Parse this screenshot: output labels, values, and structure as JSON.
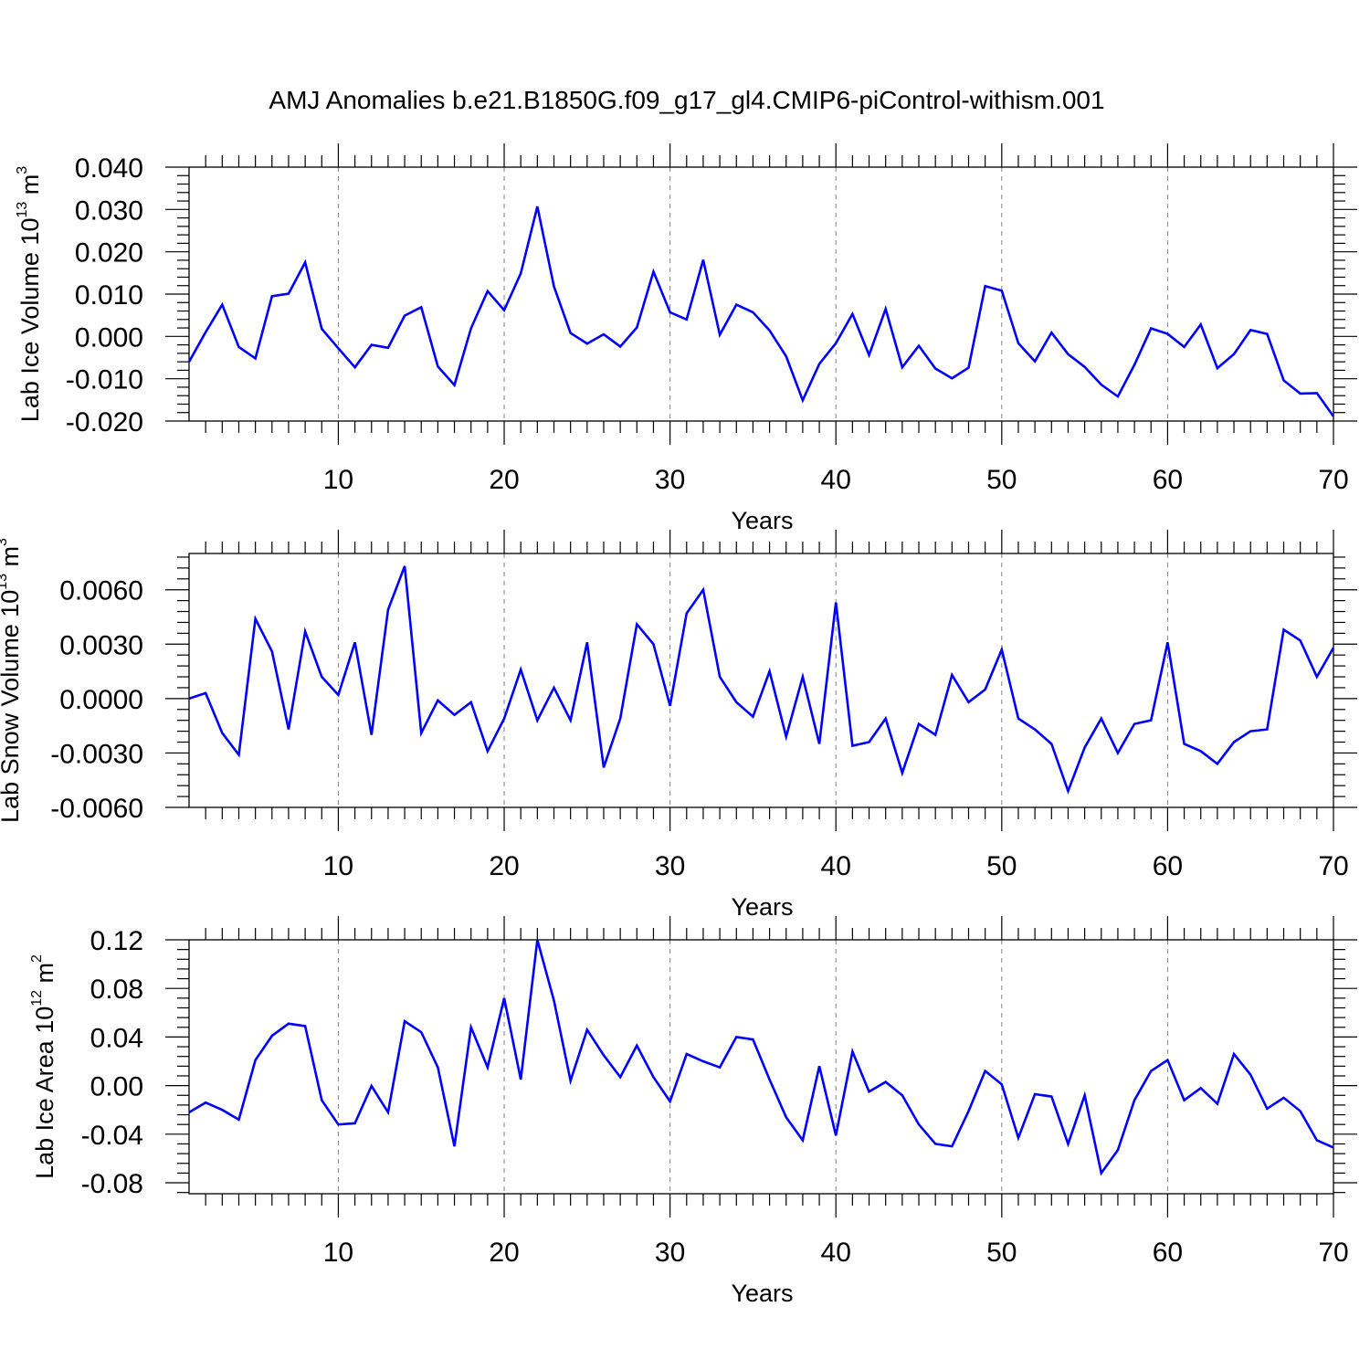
{
  "title": "AMJ Anomalies b.e21.B1850G.f09_g17_gl4.CMIP6-piControl-withism.001",
  "colors": {
    "series": "#0000ff",
    "axis": "#000000",
    "grid": "#808080"
  },
  "chart_data": [
    {
      "type": "line",
      "ylabel": "Lab Ice Volume 10",
      "ylabel_exp": "13",
      "ylabel_unit": " m",
      "ylabel_unit_exp": "3",
      "xlabel": "Years",
      "xlim": [
        1,
        70
      ],
      "ylim": [
        -0.02,
        0.04
      ],
      "yticks": [
        -0.02,
        -0.01,
        0.0,
        0.01,
        0.02,
        0.03,
        0.04
      ],
      "ytick_labels": [
        "-0.020",
        "-0.010",
        "0.000",
        "0.010",
        "0.020",
        "0.030",
        "0.040"
      ],
      "yminor_step": 0.002,
      "xticks": [
        10,
        20,
        30,
        40,
        50,
        60,
        70
      ],
      "xtick_labels": [
        "10",
        "20",
        "30",
        "40",
        "50",
        "60",
        "70"
      ],
      "grid_x": [
        10,
        20,
        30,
        40,
        50,
        60
      ],
      "values": [
        -0.006,
        0.001,
        0.0075,
        -0.0025,
        -0.0052,
        0.0095,
        0.0101,
        0.0175,
        0.0018,
        -0.0028,
        -0.0073,
        -0.002,
        -0.0027,
        0.0049,
        0.0069,
        -0.0071,
        -0.0115,
        0.0019,
        0.0107,
        0.0062,
        0.0149,
        0.0307,
        0.0118,
        0.0008,
        -0.0017,
        0.0005,
        -0.0024,
        0.0021,
        0.0153,
        0.0057,
        0.004,
        0.0181,
        0.0004,
        0.0075,
        0.0057,
        0.0014,
        -0.0047,
        -0.0151,
        -0.0065,
        -0.0016,
        0.0053,
        -0.0044,
        0.0065,
        -0.0073,
        -0.0022,
        -0.0076,
        -0.0099,
        -0.0074,
        0.0119,
        0.0108,
        -0.0016,
        -0.0059,
        0.0009,
        -0.0042,
        -0.0072,
        -0.0114,
        -0.0142,
        -0.0067,
        0.0019,
        0.0006,
        -0.0025,
        0.0028,
        -0.0075,
        -0.0042,
        0.0015,
        0.0006,
        -0.0104,
        -0.0135,
        -0.0134,
        -0.0189
      ]
    },
    {
      "type": "line",
      "ylabel": "Lab Snow Volume 10",
      "ylabel_exp": "13",
      "ylabel_unit": " m",
      "ylabel_unit_exp": "3",
      "xlabel": "Years",
      "xlim": [
        1,
        70
      ],
      "ylim": [
        -0.006,
        0.008
      ],
      "yticks": [
        -0.006,
        -0.003,
        0.0,
        0.003,
        0.006
      ],
      "ytick_labels": [
        "-0.0060",
        "-0.0030",
        "0.0000",
        "0.0030",
        "0.0060"
      ],
      "yminor_step": 0.0006,
      "xticks": [
        10,
        20,
        30,
        40,
        50,
        60,
        70
      ],
      "xtick_labels": [
        "10",
        "20",
        "30",
        "40",
        "50",
        "60",
        "70"
      ],
      "grid_x": [
        10,
        20,
        30,
        40,
        50,
        60
      ],
      "values": [
        0.0,
        0.0003,
        -0.0019,
        -0.0031,
        0.0044,
        0.0026,
        -0.0017,
        0.0037,
        0.0012,
        0.0002,
        0.0031,
        -0.002,
        0.0049,
        0.0073,
        -0.0019,
        -0.0001,
        -0.0009,
        -0.0002,
        -0.0029,
        -0.0011,
        0.0016,
        -0.0012,
        0.0006,
        -0.0012,
        0.0031,
        -0.0038,
        -0.0011,
        0.0041,
        0.003,
        -0.0004,
        0.0047,
        0.006,
        0.0012,
        -0.0002,
        -0.001,
        0.0015,
        -0.0021,
        0.0012,
        -0.0025,
        0.0053,
        -0.0026,
        -0.0024,
        -0.0011,
        -0.0041,
        -0.0014,
        -0.002,
        0.0013,
        -0.0002,
        0.0005,
        0.0027,
        -0.0011,
        -0.0017,
        -0.0025,
        -0.0051,
        -0.0027,
        -0.0011,
        -0.003,
        -0.0014,
        -0.0012,
        0.0031,
        -0.0025,
        -0.0029,
        -0.0036,
        -0.0024,
        -0.0018,
        -0.0017,
        0.0038,
        0.0032,
        0.0012,
        0.0028
      ]
    },
    {
      "type": "line",
      "ylabel": "Lab Ice Area 10",
      "ylabel_exp": "12",
      "ylabel_unit": " m",
      "ylabel_unit_exp": "2",
      "xlabel": "Years",
      "xlim": [
        1,
        70
      ],
      "ylim": [
        -0.089,
        0.12
      ],
      "yticks": [
        -0.08,
        -0.04,
        0.0,
        0.04,
        0.08,
        0.12
      ],
      "ytick_labels": [
        "-0.08",
        "-0.04",
        "0.00",
        "0.04",
        "0.08",
        "0.12"
      ],
      "yminor_step": 0.008,
      "xticks": [
        10,
        20,
        30,
        40,
        50,
        60,
        70
      ],
      "xtick_labels": [
        "10",
        "20",
        "30",
        "40",
        "50",
        "60",
        "70"
      ],
      "grid_x": [
        10,
        20,
        30,
        40,
        50,
        60
      ],
      "values": [
        -0.022,
        -0.014,
        -0.02,
        -0.028,
        0.021,
        0.041,
        0.051,
        0.049,
        -0.012,
        -0.032,
        -0.031,
        -0.0003,
        -0.022,
        0.053,
        0.044,
        0.015,
        -0.05,
        0.048,
        0.015,
        0.072,
        0.005,
        0.12,
        0.07,
        0.004,
        0.046,
        0.025,
        0.007,
        0.033,
        0.007,
        -0.013,
        0.026,
        0.02,
        0.015,
        0.04,
        0.038,
        0.005,
        -0.026,
        -0.045,
        0.016,
        -0.041,
        0.028,
        -0.005,
        0.003,
        -0.008,
        -0.032,
        -0.048,
        -0.05,
        -0.021,
        0.012,
        0.001,
        -0.043,
        -0.007,
        -0.009,
        -0.048,
        -0.008,
        -0.072,
        -0.053,
        -0.012,
        0.012,
        0.021,
        -0.012,
        -0.002,
        -0.015,
        0.026,
        0.009,
        -0.019,
        -0.01,
        -0.021,
        -0.045,
        -0.051
      ]
    }
  ]
}
